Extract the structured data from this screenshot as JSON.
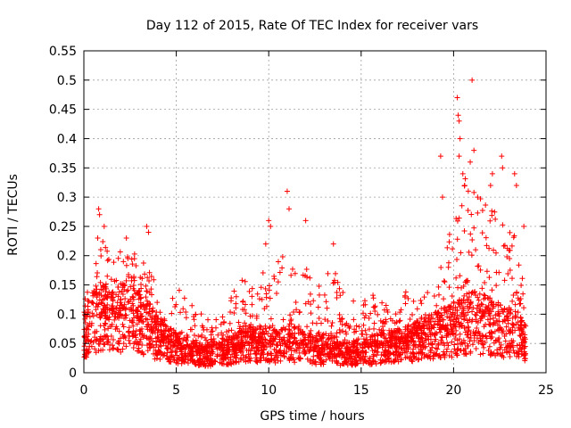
{
  "chart_data": {
    "type": "scatter",
    "title": "Day 112 of 2015, Rate Of TEC Index for receiver vars",
    "xlabel": "GPS time / hours",
    "ylabel": "ROTI / TECUs",
    "xlim": [
      0,
      25
    ],
    "ylim": [
      0,
      0.55
    ],
    "x_ticks": [
      "0",
      "5",
      "10",
      "15",
      "20",
      "25"
    ],
    "x_tick_values": [
      0,
      5,
      10,
      15,
      20,
      25
    ],
    "y_ticks": [
      "0",
      "0.05",
      "0.1",
      "0.15",
      "0.2",
      "0.25",
      "0.3",
      "0.35",
      "0.4",
      "0.45",
      "0.5",
      "0.55"
    ],
    "y_tick_values": [
      0,
      0.05,
      0.1,
      0.15,
      0.2,
      0.25,
      0.3,
      0.35,
      0.4,
      0.45,
      0.5,
      0.55
    ],
    "grid": true,
    "marker": "+",
    "series": [
      {
        "name": "ROTI",
        "color": "#ff0000",
        "envelope": {
          "hours": [
            0,
            0.5,
            1,
            1.5,
            2,
            2.5,
            3,
            3.5,
            4,
            4.5,
            5,
            5.5,
            6,
            6.5,
            7,
            7.5,
            8,
            8.5,
            9,
            9.5,
            10,
            10.5,
            11,
            11.5,
            12,
            12.5,
            13,
            13.5,
            14,
            14.5,
            15,
            15.5,
            16,
            16.5,
            17,
            17.5,
            18,
            18.5,
            19,
            19.5,
            20,
            20.5,
            21,
            21.5,
            22,
            22.5,
            23,
            23.5,
            23.9
          ],
          "median": [
            0.06,
            0.09,
            0.1,
            0.09,
            0.1,
            0.11,
            0.09,
            0.08,
            0.06,
            0.05,
            0.045,
            0.04,
            0.035,
            0.03,
            0.03,
            0.035,
            0.04,
            0.045,
            0.05,
            0.05,
            0.05,
            0.045,
            0.05,
            0.05,
            0.045,
            0.04,
            0.04,
            0.04,
            0.035,
            0.035,
            0.035,
            0.04,
            0.045,
            0.045,
            0.05,
            0.05,
            0.055,
            0.06,
            0.065,
            0.07,
            0.075,
            0.08,
            0.09,
            0.085,
            0.08,
            0.075,
            0.07,
            0.065,
            0.05
          ],
          "max": [
            0.12,
            0.19,
            0.25,
            0.18,
            0.22,
            0.21,
            0.2,
            0.19,
            0.14,
            0.12,
            0.15,
            0.13,
            0.11,
            0.1,
            0.09,
            0.1,
            0.13,
            0.17,
            0.16,
            0.14,
            0.26,
            0.2,
            0.24,
            0.18,
            0.25,
            0.13,
            0.17,
            0.19,
            0.14,
            0.13,
            0.12,
            0.14,
            0.13,
            0.11,
            0.12,
            0.15,
            0.13,
            0.14,
            0.17,
            0.21,
            0.26,
            0.35,
            0.34,
            0.3,
            0.28,
            0.27,
            0.28,
            0.24,
            0.12
          ]
        },
        "highlights": [
          {
            "x": 0.8,
            "y": 0.28
          },
          {
            "x": 0.85,
            "y": 0.27
          },
          {
            "x": 0.75,
            "y": 0.23
          },
          {
            "x": 1.1,
            "y": 0.25
          },
          {
            "x": 2.3,
            "y": 0.23
          },
          {
            "x": 3.4,
            "y": 0.25
          },
          {
            "x": 3.5,
            "y": 0.24
          },
          {
            "x": 10.0,
            "y": 0.26
          },
          {
            "x": 10.1,
            "y": 0.25
          },
          {
            "x": 11.0,
            "y": 0.31
          },
          {
            "x": 11.1,
            "y": 0.28
          },
          {
            "x": 12.0,
            "y": 0.26
          },
          {
            "x": 13.5,
            "y": 0.22
          },
          {
            "x": 19.3,
            "y": 0.37
          },
          {
            "x": 19.4,
            "y": 0.3
          },
          {
            "x": 20.2,
            "y": 0.47
          },
          {
            "x": 20.25,
            "y": 0.44
          },
          {
            "x": 20.3,
            "y": 0.43
          },
          {
            "x": 20.35,
            "y": 0.4
          },
          {
            "x": 20.3,
            "y": 0.37
          },
          {
            "x": 20.5,
            "y": 0.34
          },
          {
            "x": 20.6,
            "y": 0.32
          },
          {
            "x": 21.0,
            "y": 0.5
          },
          {
            "x": 21.1,
            "y": 0.38
          },
          {
            "x": 20.9,
            "y": 0.36
          },
          {
            "x": 21.3,
            "y": 0.3
          },
          {
            "x": 22.1,
            "y": 0.34
          },
          {
            "x": 22.0,
            "y": 0.32
          },
          {
            "x": 22.6,
            "y": 0.37
          },
          {
            "x": 22.65,
            "y": 0.35
          },
          {
            "x": 23.3,
            "y": 0.34
          },
          {
            "x": 23.4,
            "y": 0.32
          },
          {
            "x": 23.8,
            "y": 0.25
          }
        ]
      }
    ]
  }
}
